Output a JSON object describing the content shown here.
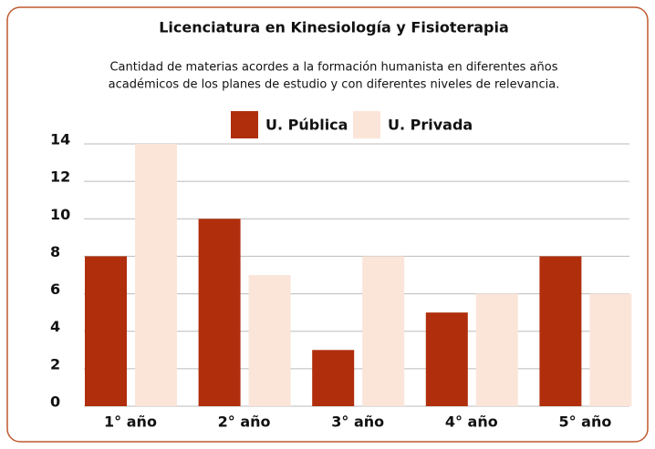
{
  "chart_data": {
    "type": "bar",
    "title": "Licenciatura en Kinesiología y Fisioterapia",
    "subtitle": [
      "Cantidad de materias acordes a la formación humanista en diferentes años",
      "académicos de los planes de estudio y con diferentes niveles de relevancia."
    ],
    "categories": [
      "1° año",
      "2° año",
      "3° año",
      "4° año",
      "5° año"
    ],
    "series": [
      {
        "name": "U. Pública",
        "color": "#b02e0c",
        "values": [
          8,
          10,
          3,
          5,
          8
        ]
      },
      {
        "name": "U. Privada",
        "color": "#fbe5d9",
        "values": [
          14,
          7,
          8,
          6,
          6
        ]
      }
    ],
    "ylim": [
      0,
      14
    ],
    "yticks": [
      0,
      2,
      4,
      6,
      8,
      10,
      12,
      14
    ],
    "grid": true,
    "legend": "top"
  }
}
